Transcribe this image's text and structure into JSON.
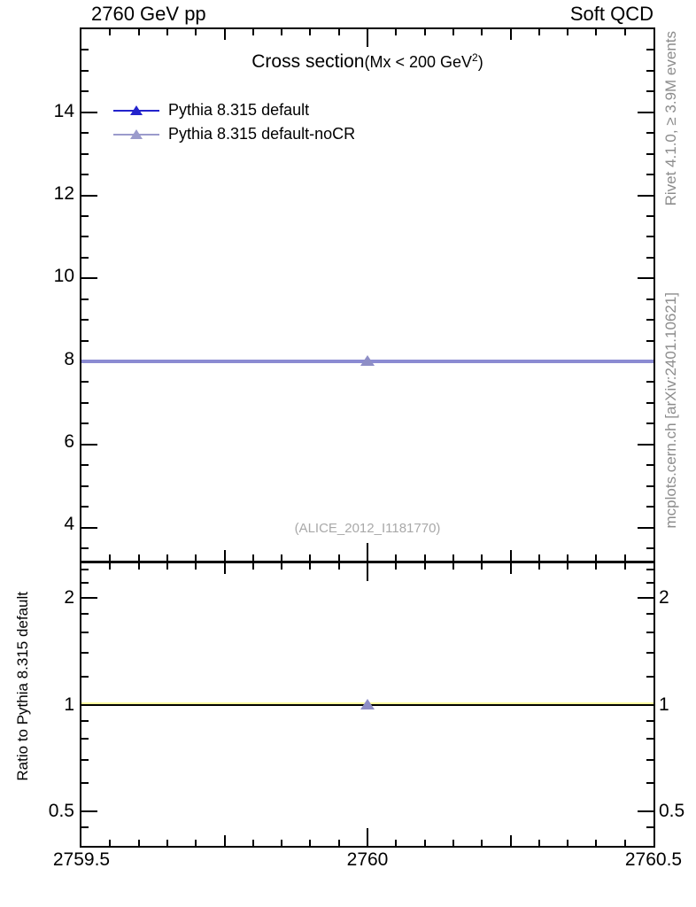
{
  "header": {
    "left": "2760 GeV pp",
    "right": "Soft QCD"
  },
  "title": {
    "main": "Cross section",
    "paren": "(Mx < 200 GeV",
    "sup": "2",
    "close": ")"
  },
  "legend": {
    "items": [
      {
        "label": "Pythia 8.315 default",
        "color": "#2323cc"
      },
      {
        "label": "Pythia 8.315 default-noCR",
        "color": "#9b9bcc"
      }
    ]
  },
  "watermark": "(ALICE_2012_I1181770)",
  "side_notes": {
    "top": "Rivet 4.1.0, ≥ 3.9M events",
    "bottom": "mcplots.cern.ch [arXiv:2401.10621]"
  },
  "ratio_ylabel": "Ratio to Pythia 8.315 default",
  "colors": {
    "frame": "#000000",
    "default_blue": "#2323cc",
    "nocr_gray": "#9b9bcc",
    "overlap_line": "#8b8bd2",
    "marker_fill": "#8e8ec6",
    "ratio_band_yellow": "#ffff9e",
    "ref_line": "#000000",
    "note_gray": "#8c8c8c",
    "watermark_gray": "#a9a9a9"
  },
  "chart_data": {
    "type": "line",
    "title": "Cross section (Mx < 200 GeV^2)",
    "beam": "2760 GeV pp",
    "process_group": "Soft QCD",
    "analysis": "ALICE_2012_I1181770",
    "axes": {
      "x": {
        "range": [
          2759.5,
          2760.5
        ],
        "minor_step": 0.05,
        "medium_mult": 0.25,
        "major_mult": 0.5,
        "labels": [
          {
            "v": 2759.5,
            "t": "2759.5"
          },
          {
            "v": 2760,
            "t": "2760"
          },
          {
            "v": 2760.5,
            "t": "2760.5"
          }
        ]
      },
      "y_main": {
        "range": [
          3.2,
          16
        ],
        "minor_step": 0.5,
        "major_mult": 2,
        "labels": [
          {
            "v": 4,
            "t": "4"
          },
          {
            "v": 6,
            "t": "6"
          },
          {
            "v": 8,
            "t": "8"
          },
          {
            "v": 10,
            "t": "10"
          },
          {
            "v": 12,
            "t": "12"
          },
          {
            "v": 14,
            "t": "14"
          }
        ]
      },
      "y_ratio": {
        "scale": "log",
        "range": [
          0.4,
          2.5
        ],
        "majors": [
          0.5,
          1,
          2
        ],
        "minors": [
          0.45,
          0.6,
          0.7,
          0.8,
          0.9,
          1.2,
          1.4,
          1.6,
          1.8,
          2.2,
          2.4
        ],
        "labels": [
          {
            "v": 2,
            "t": "2"
          },
          {
            "v": 1,
            "t": "1"
          },
          {
            "v": 0.5,
            "t": "0.5"
          }
        ]
      }
    },
    "main": {
      "series": [
        {
          "name": "Pythia 8.315 default",
          "marker": "triangle-up",
          "x": [
            2760
          ],
          "y": [
            8.0
          ],
          "bin_lo": 2759.5,
          "bin_hi": 2760.5
        },
        {
          "name": "Pythia 8.315 default-noCR",
          "marker": "triangle-up",
          "x": [
            2760
          ],
          "y": [
            8.0
          ],
          "bin_lo": 2759.5,
          "bin_hi": 2760.5
        }
      ]
    },
    "ratio": {
      "reference": "Pythia 8.315 default",
      "series": [
        {
          "name": "Pythia 8.315 default-noCR",
          "x": [
            2760
          ],
          "y": [
            1.0
          ],
          "bin_lo": 2759.5,
          "bin_hi": 2760.5
        }
      ]
    }
  }
}
